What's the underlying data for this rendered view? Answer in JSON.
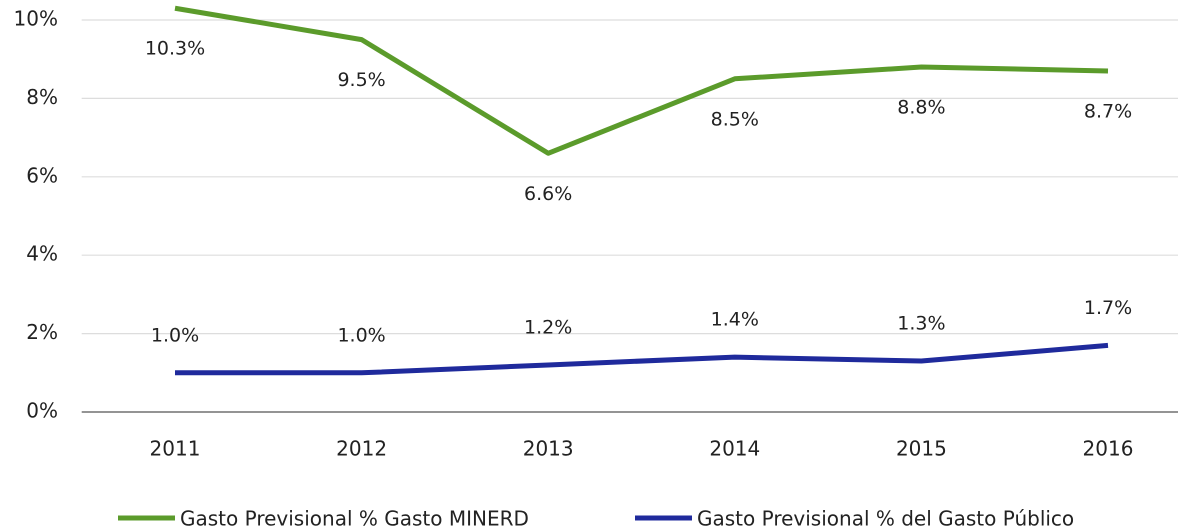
{
  "chart_data": {
    "type": "line",
    "categories": [
      "2011",
      "2012",
      "2013",
      "2014",
      "2015",
      "2016"
    ],
    "series": [
      {
        "name": "Gasto Previsional % Gasto MINERD",
        "color": "#5b9b2b",
        "values": [
          10.3,
          9.5,
          6.6,
          8.5,
          8.8,
          8.7
        ],
        "value_labels": [
          "10.3%",
          "9.5%",
          "6.6%",
          "8.5%",
          "8.8%",
          "8.7%"
        ]
      },
      {
        "name": "Gasto Previsional % del Gasto Público",
        "color": "#1f2a9c",
        "values": [
          1.0,
          1.0,
          1.2,
          1.4,
          1.3,
          1.7
        ],
        "value_labels": [
          "1.0%",
          "1.0%",
          "1.2%",
          "1.4%",
          "1.3%",
          "1.7%"
        ]
      }
    ],
    "ylim": [
      0,
      10
    ],
    "yticks": [
      {
        "value": 0,
        "label": "0%"
      },
      {
        "value": 2,
        "label": "2%"
      },
      {
        "value": 4,
        "label": "4%"
      },
      {
        "value": 6,
        "label": "6%"
      },
      {
        "value": 8,
        "label": "8%"
      },
      {
        "value": 10,
        "label": "10%"
      }
    ],
    "grid": true,
    "legend": "bottom"
  }
}
